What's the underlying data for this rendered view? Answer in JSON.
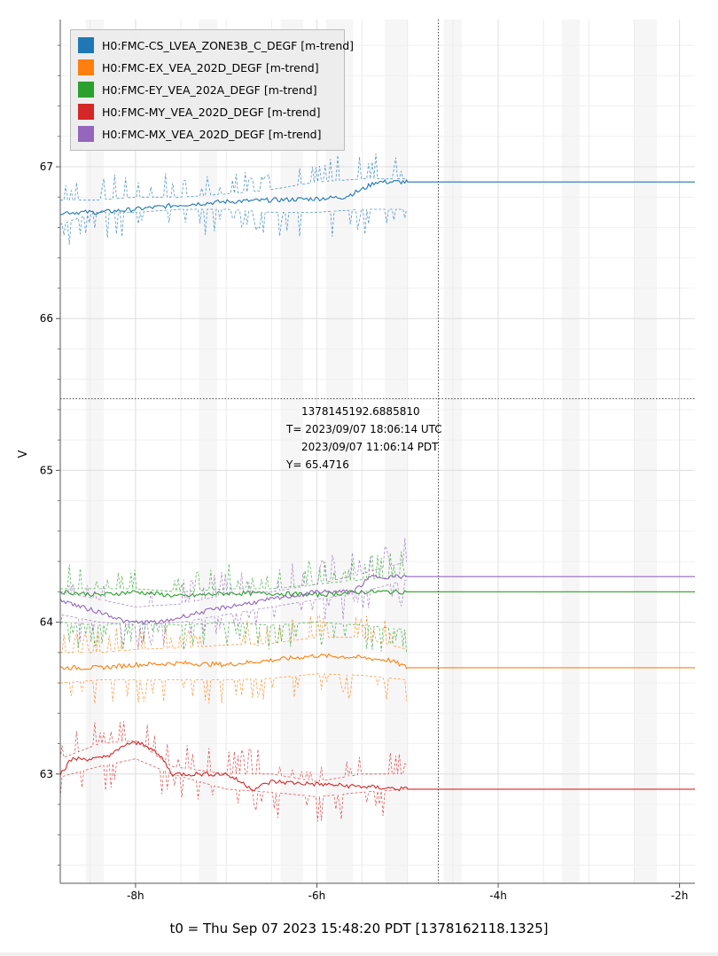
{
  "chart_data": {
    "type": "line",
    "title": "",
    "xlabel": "",
    "ylabel": "V",
    "x_unit": "hours relative to t0",
    "xlim": [
      -8.83,
      -1.83
    ],
    "ylim": [
      62.28,
      67.97
    ],
    "x_ticks": [
      {
        "value": -8,
        "label": "-8h"
      },
      {
        "value": -6,
        "label": "-6h"
      },
      {
        "value": -4,
        "label": "-4h"
      },
      {
        "value": -2,
        "label": "-2h"
      }
    ],
    "y_ticks": [
      {
        "value": 63,
        "label": "63"
      },
      {
        "value": 64,
        "label": "64"
      },
      {
        "value": 65,
        "label": "65"
      },
      {
        "value": 66,
        "label": "66"
      },
      {
        "value": 67,
        "label": "67"
      }
    ],
    "grid": true,
    "legend_position": "top-left",
    "series": [
      {
        "name": "H0:FMC-CS_LVEA_ZONE3B_C_DEGF [m-trend]",
        "color": "#1f77b4",
        "mean": {
          "x": [
            -8.83,
            -8.4,
            -8.0,
            -7.5,
            -7.0,
            -6.5,
            -6.0,
            -5.7,
            -5.5,
            -5.35,
            -5.0,
            -4.7,
            -1.83
          ],
          "y": [
            66.7,
            66.7,
            66.72,
            66.75,
            66.77,
            66.78,
            66.79,
            66.8,
            66.85,
            66.9,
            66.9,
            66.9,
            66.9
          ]
        },
        "min": {
          "x": [
            -8.83,
            -8.45,
            -8.0,
            -7.5,
            -7.0,
            -6.5,
            -6.0,
            -5.5,
            -5.0
          ],
          "y": [
            66.62,
            66.7,
            66.7,
            66.72,
            66.72,
            66.7,
            66.7,
            66.72,
            66.72
          ]
        },
        "max": {
          "x": [
            -8.83,
            -8.45,
            -8.0,
            -7.5,
            -7.0,
            -6.5,
            -6.0,
            -5.5,
            -5.0
          ],
          "y": [
            66.78,
            66.78,
            66.8,
            66.8,
            66.82,
            66.85,
            66.9,
            66.92,
            66.92
          ]
        }
      },
      {
        "name": "H0:FMC-EX_VEA_202D_DEGF [m-trend]",
        "color": "#ff7f0e",
        "mean": {
          "x": [
            -8.83,
            -8.4,
            -8.0,
            -7.5,
            -7.0,
            -6.5,
            -6.0,
            -5.6,
            -5.2,
            -5.0,
            -4.7,
            -1.83
          ],
          "y": [
            63.7,
            63.7,
            63.72,
            63.73,
            63.72,
            63.75,
            63.78,
            63.77,
            63.75,
            63.7,
            63.7,
            63.7
          ]
        },
        "min": {
          "x": [
            -8.83,
            -8.4,
            -8.0,
            -7.5,
            -7.0,
            -6.5,
            -6.0,
            -5.5,
            -5.0
          ],
          "y": [
            63.6,
            63.62,
            63.62,
            63.62,
            63.62,
            63.63,
            63.66,
            63.65,
            63.62
          ]
        },
        "max": {
          "x": [
            -8.83,
            -8.4,
            -8.0,
            -7.5,
            -7.0,
            -6.5,
            -6.0,
            -5.5,
            -5.0
          ],
          "y": [
            63.8,
            63.8,
            63.82,
            63.83,
            63.85,
            63.86,
            63.9,
            63.9,
            63.82
          ]
        }
      },
      {
        "name": "H0:FMC-EY_VEA_202A_DEGF [m-trend]",
        "color": "#2ca02c",
        "mean": {
          "x": [
            -8.83,
            -8.4,
            -8.0,
            -7.5,
            -7.0,
            -6.5,
            -6.0,
            -5.5,
            -5.0,
            -4.7,
            -1.83
          ],
          "y": [
            64.2,
            64.18,
            64.2,
            64.17,
            64.19,
            64.19,
            64.18,
            64.2,
            64.2,
            64.2,
            64.2
          ]
        },
        "min": {
          "x": [
            -8.83,
            -8.4,
            -8.0,
            -7.5,
            -7.0,
            -6.5,
            -6.0,
            -5.5,
            -5.0
          ],
          "y": [
            64.0,
            63.98,
            64.0,
            63.98,
            64.0,
            63.98,
            64.0,
            63.98,
            63.95
          ]
        },
        "max": {
          "x": [
            -8.83,
            -8.4,
            -8.0,
            -7.5,
            -7.0,
            -6.5,
            -6.0,
            -5.5,
            -5.0
          ],
          "y": [
            64.22,
            64.22,
            64.22,
            64.2,
            64.22,
            64.22,
            64.25,
            64.28,
            64.3
          ]
        }
      },
      {
        "name": "H0:FMC-MY_VEA_202D_DEGF [m-trend]",
        "color": "#d62728",
        "mean": {
          "x": [
            -8.83,
            -8.7,
            -8.4,
            -8.2,
            -8.1,
            -7.9,
            -7.7,
            -7.6,
            -7.0,
            -6.7,
            -6.5,
            -5.0,
            -4.9,
            -4.7,
            -1.83
          ],
          "y": [
            63.0,
            63.1,
            63.1,
            63.15,
            63.2,
            63.2,
            63.1,
            63.0,
            63.0,
            62.9,
            62.95,
            62.9,
            62.98,
            62.9,
            62.9
          ]
        },
        "min": {
          "x": [
            -8.83,
            -8.4,
            -8.0,
            -7.6,
            -7.0,
            -6.5,
            -6.0,
            -5.5,
            -5.0
          ],
          "y": [
            62.98,
            63.05,
            63.1,
            63.0,
            62.9,
            62.88,
            62.85,
            62.88,
            62.9
          ]
        },
        "max": {
          "x": [
            -8.83,
            -8.4,
            -8.0,
            -7.6,
            -7.0,
            -6.5,
            -6.0,
            -5.5,
            -5.0
          ],
          "y": [
            63.1,
            63.2,
            63.22,
            63.05,
            63.0,
            63.0,
            62.95,
            63.0,
            63.0
          ]
        }
      },
      {
        "name": "H0:FMC-MX_VEA_202D_DEGF [m-trend]",
        "color": "#9467bd",
        "mean": {
          "x": [
            -8.83,
            -8.6,
            -8.3,
            -8.1,
            -7.7,
            -7.4,
            -7.0,
            -6.5,
            -6.0,
            -5.6,
            -5.4,
            -5.0,
            -4.7,
            -1.83
          ],
          "y": [
            64.15,
            64.1,
            64.05,
            64.0,
            64.0,
            64.05,
            64.1,
            64.15,
            64.2,
            64.2,
            64.3,
            64.3,
            64.3,
            64.3
          ]
        },
        "min": {
          "x": [
            -8.83,
            -8.4,
            -8.0,
            -7.5,
            -7.0,
            -6.5,
            -6.0,
            -5.5,
            -5.0
          ],
          "y": [
            64.05,
            64.0,
            63.98,
            64.0,
            64.05,
            64.1,
            64.15,
            64.2,
            64.28
          ]
        },
        "max": {
          "x": [
            -8.83,
            -8.4,
            -8.0,
            -7.5,
            -7.0,
            -6.5,
            -6.0,
            -5.5,
            -5.0
          ],
          "y": [
            64.2,
            64.15,
            64.1,
            64.12,
            64.18,
            64.2,
            64.25,
            64.32,
            64.4
          ]
        }
      }
    ],
    "crosshair": {
      "x": -4.66,
      "y": 65.4716
    },
    "readout": {
      "gps": "1378145192.6885810",
      "utc": "T= 2023/09/07 18:06:14 UTC",
      "pdt": "2023/09/07 11:06:14 PDT",
      "y": "Y= 65.4716"
    },
    "footer": "t0 = Thu Sep 07 2023 15:48:20 PDT [1378162118.1325]"
  }
}
